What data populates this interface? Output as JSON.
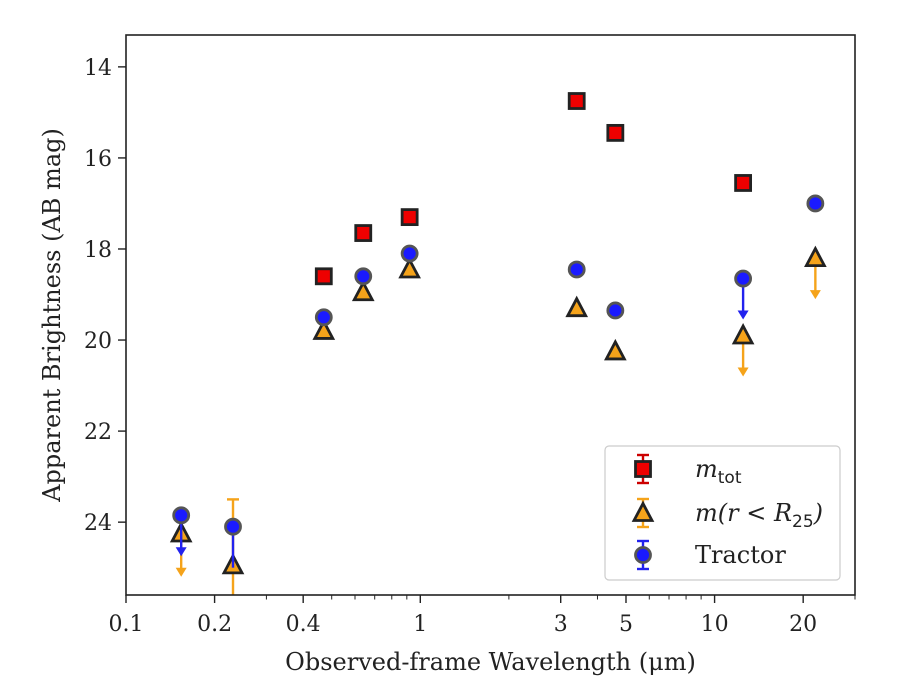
{
  "chart_data": {
    "type": "scatter",
    "xlabel": "Observed-frame Wavelength (μm)",
    "ylabel": "Apparent Brightness (AB mag)",
    "xscale": "log",
    "xlim": [
      0.1,
      30
    ],
    "ylim": [
      25.6,
      13.3
    ],
    "y_inverted": true,
    "grid": false,
    "legend_position": "lower-right",
    "x_ticks": [
      {
        "value": 0.1,
        "label": "0.1"
      },
      {
        "value": 0.2,
        "label": "0.2"
      },
      {
        "value": 0.4,
        "label": "0.4"
      },
      {
        "value": 1,
        "label": "1"
      },
      {
        "value": 3,
        "label": "3"
      },
      {
        "value": 5,
        "label": "5"
      },
      {
        "value": 10,
        "label": "10"
      },
      {
        "value": 20,
        "label": "20"
      }
    ],
    "y_ticks": [
      {
        "value": 14,
        "label": "14"
      },
      {
        "value": 16,
        "label": "16"
      },
      {
        "value": 18,
        "label": "18"
      },
      {
        "value": 20,
        "label": "20"
      },
      {
        "value": 22,
        "label": "22"
      },
      {
        "value": 24,
        "label": "24"
      }
    ],
    "series": [
      {
        "key": "mtot",
        "marker": "square",
        "face_color": "#ee0000",
        "edge_color": "#222222",
        "errbar_color": "#cc0000",
        "points": [
          {
            "x": 0.47,
            "y": 18.6
          },
          {
            "x": 0.64,
            "y": 17.65
          },
          {
            "x": 0.92,
            "y": 17.3
          },
          {
            "x": 3.4,
            "y": 14.75
          },
          {
            "x": 4.6,
            "y": 15.45
          },
          {
            "x": 12.5,
            "y": 16.55
          }
        ]
      },
      {
        "key": "mr25",
        "marker": "triangle",
        "face_color": "#f5a31a",
        "edge_color": "#222222",
        "errbar_color": "#f5a31a",
        "points": [
          {
            "x": 0.154,
            "y": 24.25,
            "upper_limit": true,
            "arrow_to": 25.2
          },
          {
            "x": 0.231,
            "y": 24.95,
            "err_low": 23.5,
            "err_high": 25.6
          },
          {
            "x": 0.47,
            "y": 19.8
          },
          {
            "x": 0.64,
            "y": 18.95
          },
          {
            "x": 0.92,
            "y": 18.45
          },
          {
            "x": 3.4,
            "y": 19.3
          },
          {
            "x": 4.6,
            "y": 20.25
          },
          {
            "x": 12.5,
            "y": 19.9,
            "upper_limit": true,
            "arrow_to": 20.8
          },
          {
            "x": 22,
            "y": 18.2,
            "upper_limit": true,
            "arrow_to": 19.1
          }
        ]
      },
      {
        "key": "tractor",
        "marker": "circle",
        "face_color": "#1a1aff",
        "edge_color": "#555555",
        "errbar_color": "#2222ee",
        "points": [
          {
            "x": 0.154,
            "y": 23.85,
            "upper_limit": true,
            "arrow_to": 24.75
          },
          {
            "x": 0.231,
            "y": 24.1,
            "err_low": 24.1,
            "err_high": 25.0
          },
          {
            "x": 0.47,
            "y": 19.5
          },
          {
            "x": 0.64,
            "y": 18.6
          },
          {
            "x": 0.92,
            "y": 18.1
          },
          {
            "x": 3.4,
            "y": 18.45
          },
          {
            "x": 4.6,
            "y": 19.35
          },
          {
            "x": 12.5,
            "y": 18.65,
            "upper_limit": true,
            "arrow_to": 19.55
          },
          {
            "x": 22,
            "y": 17.0
          }
        ]
      }
    ],
    "legend": [
      {
        "series": "mtot",
        "math": true,
        "base": "m",
        "sub": "tot",
        "text": ""
      },
      {
        "series": "mr25",
        "math": true,
        "base": "m(r < R",
        "sub": "25",
        "text": ")"
      },
      {
        "series": "tractor",
        "math": false,
        "base": "",
        "sub": "",
        "text": "Tractor"
      }
    ]
  }
}
